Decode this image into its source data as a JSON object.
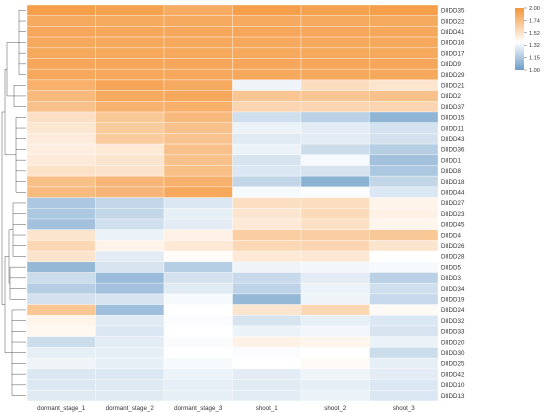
{
  "chart_data": {
    "type": "heatmap",
    "title": "",
    "columns": [
      "dormant_stage_1",
      "dormant_stage_2",
      "dormant_stage_3",
      "shoot_1",
      "shoot_2",
      "shoot_3"
    ],
    "rows": [
      "DlIDD35",
      "DlIDD22",
      "DlIDD41",
      "DlIDD16",
      "DlIDD17",
      "DlIDD9",
      "DlIDD29",
      "DlIDD21",
      "DlIDD2",
      "DlIDD37",
      "DlIDD15",
      "DlIDD11",
      "DlIDD43",
      "DlIDD36",
      "DlIDD1",
      "DlIDD8",
      "DlIDD18",
      "DlIDD44",
      "DlIDD27",
      "DlIDD23",
      "DlIDD45",
      "DlIDD4",
      "DlIDD26",
      "DlIDD28",
      "DlIDD5",
      "DlIDD3",
      "DlIDD34",
      "DlIDD19",
      "DlIDD24",
      "DlIDD32",
      "DlIDD33",
      "DlIDD20",
      "DlIDD30",
      "DlIDD25",
      "DlIDD42",
      "DlIDD10",
      "DlIDD13"
    ],
    "values": [
      [
        1.93,
        1.91,
        1.84,
        1.93,
        1.91,
        1.93
      ],
      [
        1.85,
        1.85,
        1.85,
        1.85,
        1.85,
        1.85
      ],
      [
        1.87,
        1.86,
        1.86,
        1.88,
        1.87,
        1.86
      ],
      [
        1.86,
        1.86,
        1.86,
        1.86,
        1.86,
        1.86
      ],
      [
        1.86,
        1.86,
        1.86,
        1.86,
        1.86,
        1.86
      ],
      [
        1.87,
        1.87,
        1.87,
        1.87,
        1.87,
        1.87
      ],
      [
        1.86,
        1.86,
        1.86,
        1.86,
        1.86,
        1.86
      ],
      [
        1.8,
        1.88,
        1.85,
        1.28,
        1.5,
        1.45
      ],
      [
        1.74,
        1.85,
        1.86,
        1.66,
        1.66,
        1.69
      ],
      [
        1.69,
        1.79,
        1.81,
        1.55,
        1.55,
        1.55
      ],
      [
        1.48,
        1.64,
        1.74,
        1.2,
        1.15,
        1.06
      ],
      [
        1.44,
        1.62,
        1.69,
        1.27,
        1.25,
        1.21
      ],
      [
        1.41,
        1.62,
        1.67,
        1.24,
        1.25,
        1.21
      ],
      [
        1.4,
        1.43,
        1.69,
        1.27,
        1.19,
        1.14
      ],
      [
        1.42,
        1.45,
        1.68,
        1.22,
        1.3,
        1.1
      ],
      [
        1.47,
        1.46,
        1.7,
        1.23,
        1.22,
        1.12
      ],
      [
        1.7,
        1.76,
        1.8,
        1.17,
        1.05,
        1.17
      ],
      [
        1.73,
        1.76,
        1.86,
        1.3,
        1.31,
        1.23
      ],
      [
        1.12,
        1.17,
        1.23,
        1.49,
        1.5,
        1.37
      ],
      [
        1.12,
        1.17,
        1.26,
        1.45,
        1.52,
        1.38
      ],
      [
        1.1,
        1.2,
        1.25,
        1.43,
        1.48,
        1.36
      ],
      [
        1.45,
        1.27,
        1.38,
        1.6,
        1.6,
        1.64
      ],
      [
        1.54,
        1.37,
        1.43,
        1.54,
        1.55,
        1.45
      ],
      [
        1.46,
        1.25,
        1.33,
        1.43,
        1.44,
        1.32
      ],
      [
        1.07,
        1.22,
        1.14,
        1.28,
        1.29,
        1.3
      ],
      [
        1.19,
        1.08,
        1.21,
        1.18,
        1.25,
        1.15
      ],
      [
        1.14,
        1.1,
        1.24,
        1.16,
        1.27,
        1.2
      ],
      [
        1.21,
        1.22,
        1.3,
        1.07,
        1.28,
        1.18
      ],
      [
        1.65,
        1.09,
        1.32,
        1.45,
        1.54,
        1.34
      ],
      [
        1.37,
        1.24,
        1.31,
        1.22,
        1.26,
        1.23
      ],
      [
        1.35,
        1.23,
        1.32,
        1.27,
        1.29,
        1.22
      ],
      [
        1.19,
        1.25,
        1.31,
        1.38,
        1.36,
        1.27
      ],
      [
        1.26,
        1.26,
        1.32,
        1.31,
        1.32,
        1.19
      ],
      [
        1.28,
        1.26,
        1.3,
        1.32,
        1.34,
        1.26
      ],
      [
        1.23,
        1.23,
        1.27,
        1.25,
        1.28,
        1.25
      ],
      [
        1.23,
        1.24,
        1.26,
        1.24,
        1.26,
        1.23
      ],
      [
        1.24,
        1.24,
        1.26,
        1.25,
        1.27,
        1.23
      ]
    ],
    "color_scale": {
      "min": 1.0,
      "max": 2.0,
      "ticks": [
        "2.00",
        "1.74",
        "1.52",
        "1.32",
        "1.15",
        "1.00"
      ],
      "tick_values": [
        2.0,
        1.74,
        1.52,
        1.32,
        1.15,
        1.0
      ],
      "low_color": "#6d9dc8",
      "mid_color": "#ffffff",
      "high_color": "#f4963a"
    },
    "legend_placement": "top-right",
    "dendrogram": "rows",
    "grid": false
  }
}
